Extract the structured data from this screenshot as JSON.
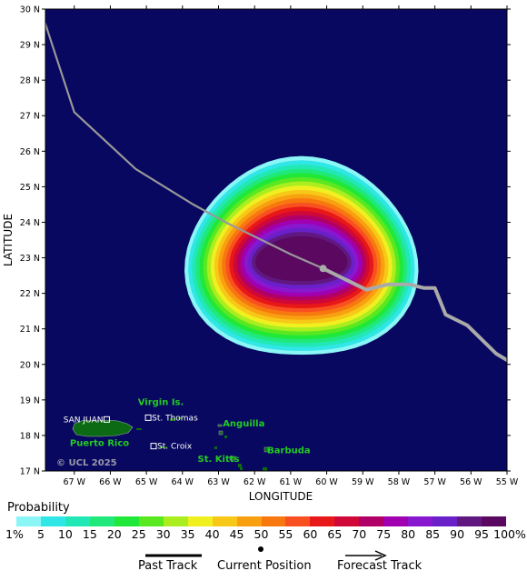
{
  "map": {
    "background": "#080860",
    "latitude_label": "LATITUDE",
    "longitude_label": "LONGITUDE",
    "lat_ticks": [
      "30 N",
      "29 N",
      "28 N",
      "27 N",
      "26 N",
      "25 N",
      "24 N",
      "23 N",
      "22 N",
      "21 N",
      "20 N",
      "19 N",
      "18 N",
      "17 N"
    ],
    "lon_ticks": [
      "67 W",
      "66 W",
      "65 W",
      "64 W",
      "63 W",
      "62 W",
      "61 W",
      "60 W",
      "59 W",
      "58 W",
      "57 W",
      "56 W",
      "55 W"
    ],
    "copyright": "© UCL 2025",
    "lat_range": [
      17,
      30
    ],
    "lon_range": [
      -67.8,
      -55
    ],
    "places": [
      {
        "name": "Virgin Is.",
        "lon": -64.6,
        "lat": 18.85,
        "color": "#22cc22"
      },
      {
        "name": "Anguilla",
        "lon": -62.3,
        "lat": 18.25,
        "color": "#22cc22"
      },
      {
        "name": "Puerto Rico",
        "lon": -66.3,
        "lat": 17.7,
        "color": "#22cc22"
      },
      {
        "name": "Barbuda",
        "lon": -61.05,
        "lat": 17.5,
        "color": "#22cc22"
      },
      {
        "name": "St. Kitts",
        "lon": -63.0,
        "lat": 17.25,
        "color": "#22cc22"
      }
    ],
    "cities": [
      {
        "name": "SAN JUAN",
        "lon": -66.1,
        "lat": 18.45
      },
      {
        "name": "St. Thomas",
        "lon": -64.95,
        "lat": 18.5
      },
      {
        "name": "St. Croix",
        "lon": -64.8,
        "lat": 17.7
      }
    ],
    "past_track": [
      [
        -68,
        30.2
      ],
      [
        -67.0,
        27.1
      ],
      [
        -65.3,
        25.5
      ],
      [
        -63.7,
        24.5
      ],
      [
        -62.8,
        24.0
      ],
      [
        -61.0,
        23.1
      ],
      [
        -60.1,
        22.7
      ]
    ],
    "forecast_track": [
      [
        -60.1,
        22.7
      ],
      [
        -59.5,
        22.4
      ],
      [
        -58.9,
        22.1
      ],
      [
        -58.3,
        22.25
      ],
      [
        -57.7,
        22.25
      ],
      [
        -57.3,
        22.15
      ],
      [
        -57.0,
        22.15
      ],
      [
        -56.7,
        21.4
      ],
      [
        -56.1,
        21.1
      ],
      [
        -55.3,
        20.3
      ],
      [
        -54.8,
        20.0
      ]
    ],
    "current_position": [
      -60.1,
      22.7
    ],
    "swath_center": [
      -60.7,
      22.95
    ]
  },
  "probability": {
    "title": "Probability",
    "labels": [
      "1%",
      "5",
      "10",
      "15",
      "20",
      "25",
      "30",
      "35",
      "40",
      "45",
      "50",
      "55",
      "60",
      "65",
      "70",
      "75",
      "80",
      "85",
      "90",
      "95",
      "100%"
    ],
    "colors": [
      "#8af6f6",
      "#30e6e6",
      "#22e8b6",
      "#20e87a",
      "#20e838",
      "#5ae820",
      "#aaee20",
      "#f0f020",
      "#f8c818",
      "#f8a010",
      "#f87810",
      "#f85020",
      "#e81818",
      "#d00838",
      "#b00068",
      "#a000b0",
      "#8818d0",
      "#6a20c8",
      "#601880",
      "#5a0860"
    ]
  },
  "legend": {
    "past_track": "Past Track",
    "current_position": "Current Position",
    "forecast_track": "Forecast Track"
  }
}
